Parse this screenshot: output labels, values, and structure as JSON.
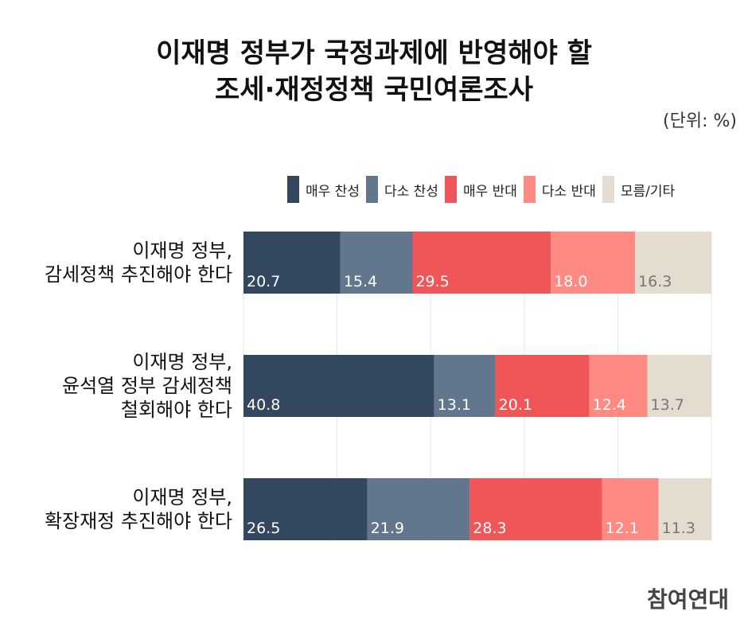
{
  "title": {
    "line1": "이재명 정부가 국정과제에 반영해야 할",
    "line2": "조세·재정정책 국민여론조사"
  },
  "unit": "(단위: %)",
  "logo": "참여연대",
  "chart_data": {
    "type": "bar",
    "orientation": "horizontal-stacked-100",
    "categories": [
      "이재명 정부,\n감세정책 추진해야 한다",
      "이재명 정부,\n윤석열 정부 감세정책\n철회해야 한다",
      "이재명 정부,\n확장재정 추진해야 한다"
    ],
    "series": [
      {
        "name": "매우 찬성",
        "color": "#33475e",
        "label_color": "#ffffff",
        "values": [
          20.7,
          40.8,
          26.5
        ]
      },
      {
        "name": "다소 찬성",
        "color": "#62768e",
        "label_color": "#ffffff",
        "values": [
          15.4,
          13.1,
          21.9
        ]
      },
      {
        "name": "매우 반대",
        "color": "#f05558",
        "label_color": "#ffffff",
        "values": [
          29.5,
          20.1,
          28.3
        ]
      },
      {
        "name": "다소 반대",
        "color": "#ff8a84",
        "label_color": "#ffffff",
        "values": [
          18.0,
          12.4,
          12.1
        ]
      },
      {
        "name": "모름/기타",
        "color": "#e3dccf",
        "label_color": "#777777",
        "values": [
          16.3,
          13.7,
          11.3
        ]
      }
    ],
    "xlim": [
      0,
      100
    ],
    "grid": true,
    "legend": "top-right"
  }
}
